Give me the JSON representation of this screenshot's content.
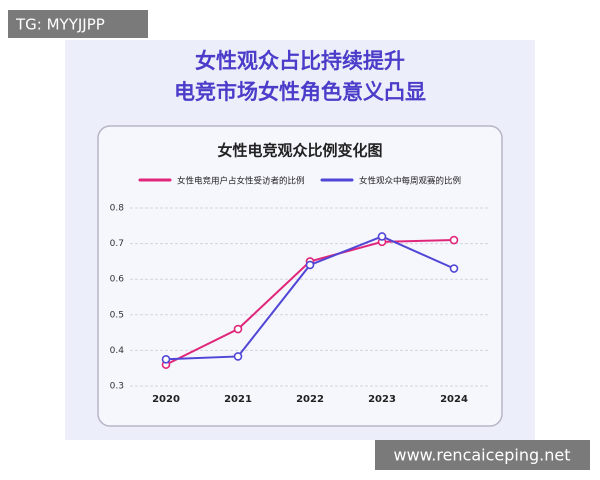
{
  "watermarks": {
    "top_left": "TG: MYYJJPP",
    "bottom_right": "www.rencaiceping.net"
  },
  "header": {
    "line1": "女性观众占比持续提升",
    "line2": "电竞市场女性角色意义凸显"
  },
  "chart_data": {
    "type": "line",
    "title": "女性电竞观众比例变化图",
    "categories": [
      "2020",
      "2021",
      "2022",
      "2023",
      "2024"
    ],
    "series": [
      {
        "name": "女性电竞用户占女性受访者的比例",
        "color": "#e0267a",
        "values": [
          0.36,
          0.46,
          0.65,
          0.705,
          0.71
        ]
      },
      {
        "name": "女性观众中每周观赛的比例",
        "color": "#5046d6",
        "values": [
          0.375,
          0.383,
          0.64,
          0.72,
          0.63
        ]
      }
    ],
    "ylim": [
      0.3,
      0.8
    ],
    "yticks": [
      0.3,
      0.4,
      0.5,
      0.6,
      0.7,
      0.8
    ],
    "grid": true,
    "legend": "top"
  }
}
